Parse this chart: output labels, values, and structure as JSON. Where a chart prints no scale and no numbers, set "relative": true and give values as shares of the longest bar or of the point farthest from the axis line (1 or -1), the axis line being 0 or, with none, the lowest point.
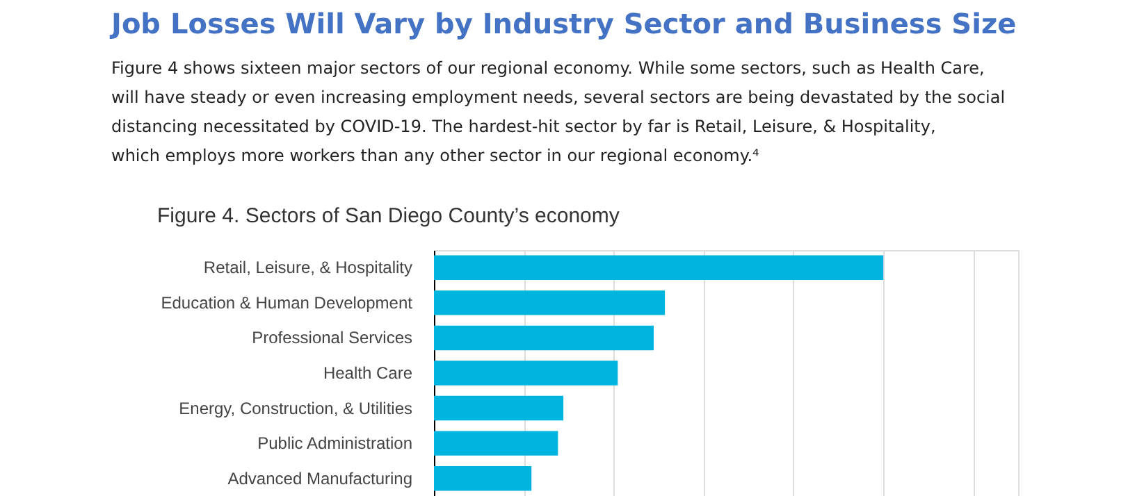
{
  "chart_data": {
    "type": "bar",
    "orientation": "horizontal",
    "relative": true,
    "title": "Job Losses Will Vary by Industry Sector and Business Size",
    "subtitle": "Figure 4 shows sixteen major sectors of our regional economy. While some sectors, such as Health Care, will have steady or even increasing employment needs, several sectors are being devastated by the social distancing necessitated by COVID-19. The hardest-hit sector by far is Retail, Leisure, & Hospitality, which employs more workers than any other sector in our regional economy.⁴",
    "annotations": [
      "Figure 4. Sectors of San Diego County’s economy"
    ],
    "categories": [
      "Retail, Leisure, & Hospitality",
      "Education & Human Development",
      "Professional Services",
      "Health Care",
      "Energy, Construction, & Utilities",
      "Public Administration",
      "Advanced Manufacturing"
    ],
    "values": [
      1,
      0.514,
      0.489,
      0.409,
      0.288,
      0.276,
      0.217
    ],
    "color": "#00b4e0",
    "grid": "x"
  }
}
